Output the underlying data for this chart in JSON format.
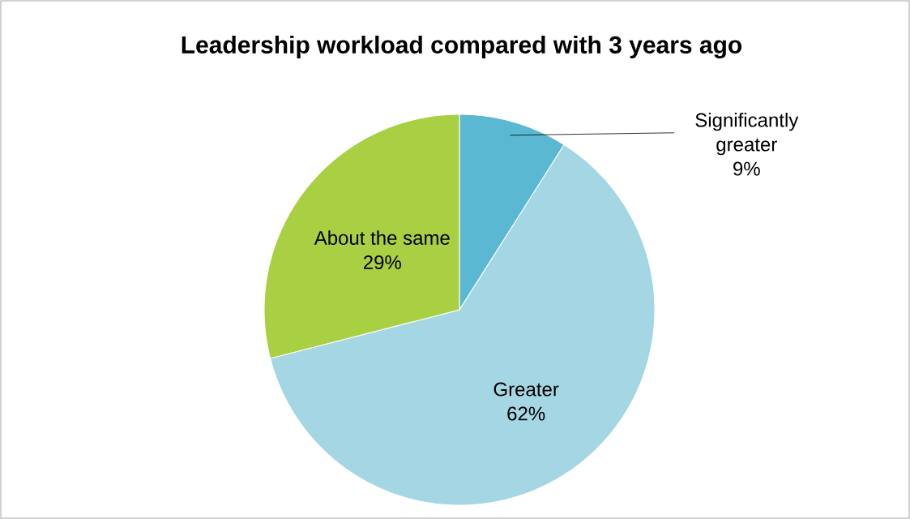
{
  "chart_data": {
    "type": "pie",
    "title": "Leadership workload compared with 3 years ago",
    "categories": [
      "Significantly greater",
      "Greater",
      "About the same"
    ],
    "values": [
      9,
      62,
      29
    ],
    "colors": [
      "#5bb8d2",
      "#a5d6e4",
      "#a9d042"
    ],
    "value_labels": [
      "9%",
      "62%",
      "29%"
    ]
  }
}
